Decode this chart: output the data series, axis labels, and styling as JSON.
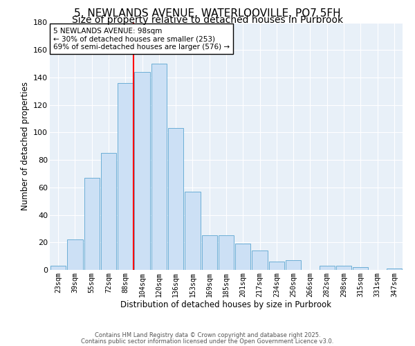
{
  "title": "5, NEWLANDS AVENUE, WATERLOOVILLE, PO7 5FH",
  "subtitle": "Size of property relative to detached houses in Purbrook",
  "xlabel": "Distribution of detached houses by size in Purbrook",
  "ylabel": "Number of detached properties",
  "bar_labels": [
    "23sqm",
    "39sqm",
    "55sqm",
    "72sqm",
    "88sqm",
    "104sqm",
    "120sqm",
    "136sqm",
    "153sqm",
    "169sqm",
    "185sqm",
    "201sqm",
    "217sqm",
    "234sqm",
    "250sqm",
    "266sqm",
    "282sqm",
    "298sqm",
    "315sqm",
    "331sqm",
    "347sqm"
  ],
  "bar_values": [
    3,
    22,
    67,
    85,
    136,
    144,
    150,
    103,
    57,
    25,
    25,
    19,
    14,
    6,
    7,
    0,
    3,
    3,
    2,
    0,
    1
  ],
  "bar_color": "#cce0f5",
  "bar_edge_color": "#6baed6",
  "ylim": [
    0,
    180
  ],
  "yticks": [
    0,
    20,
    40,
    60,
    80,
    100,
    120,
    140,
    160,
    180
  ],
  "red_line_x": 4.5,
  "annotation_title": "5 NEWLANDS AVENUE: 98sqm",
  "annotation_line1": "← 30% of detached houses are smaller (253)",
  "annotation_line2": "69% of semi-detached houses are larger (576) →",
  "footer1": "Contains HM Land Registry data © Crown copyright and database right 2025.",
  "footer2": "Contains public sector information licensed under the Open Government Licence v3.0.",
  "background_color": "#e8f0f8",
  "title_fontsize": 11,
  "subtitle_fontsize": 10
}
